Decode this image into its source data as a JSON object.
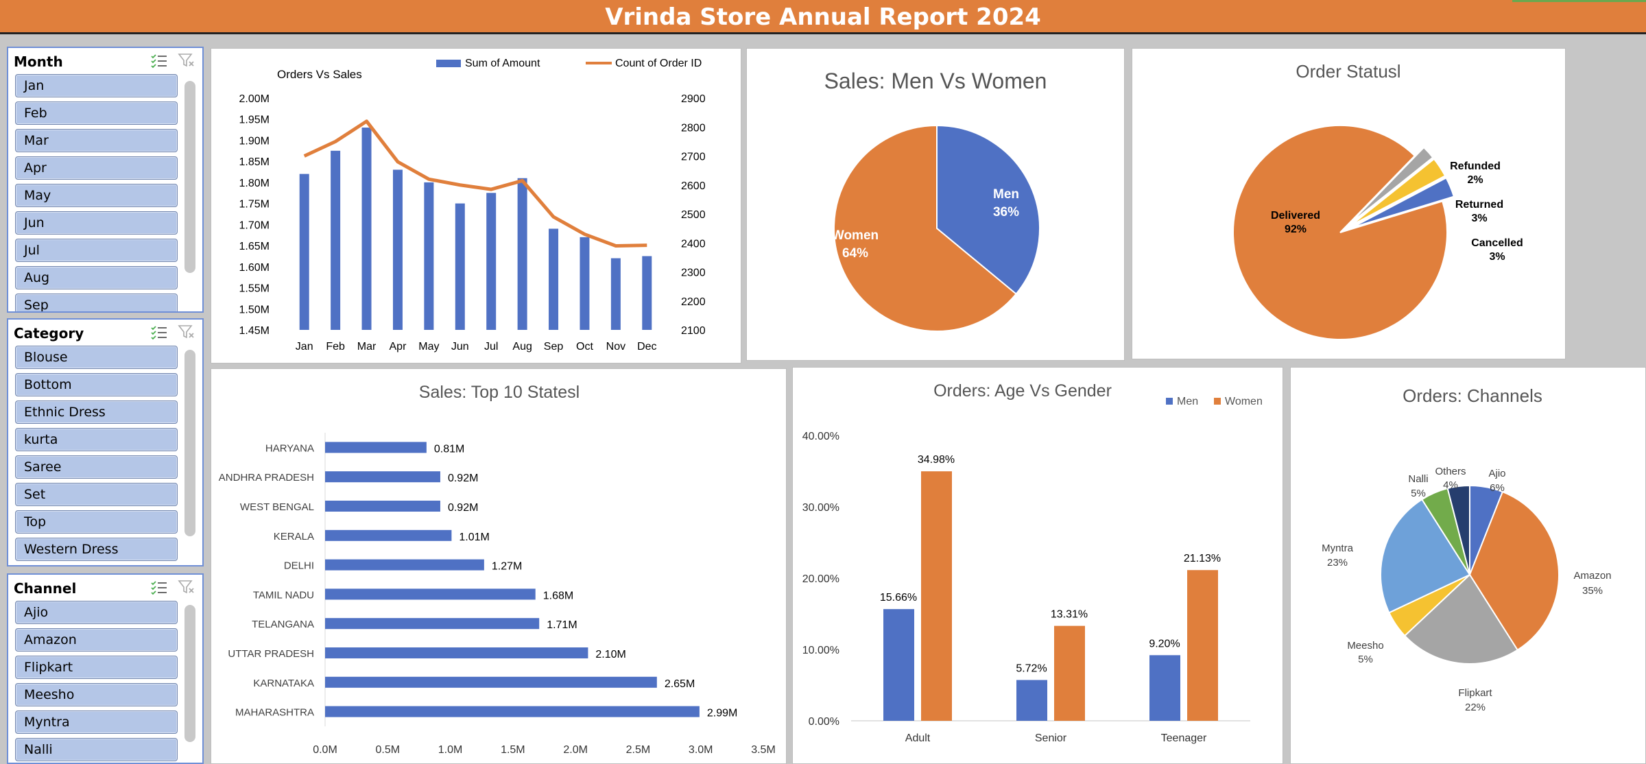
{
  "report_title": "Vrinda Store Annual Report 2024",
  "colors": {
    "orange": "#e07f3c",
    "blue": "#4f71c4",
    "gray": "#a5a5a5",
    "yellow": "#f5c231",
    "lightblue": "#6ea1d9",
    "green": "#72ab4b",
    "navy": "#263e6e"
  },
  "slicers": {
    "month": {
      "title": "Month",
      "items": [
        "Jan",
        "Feb",
        "Mar",
        "Apr",
        "May",
        "Jun",
        "Jul",
        "Aug",
        "Sep"
      ]
    },
    "category": {
      "title": "Category",
      "items": [
        "Blouse",
        "Bottom",
        "Ethnic Dress",
        "kurta",
        "Saree",
        "Set",
        "Top",
        "Western Dress"
      ]
    },
    "channel": {
      "title": "Channel",
      "items": [
        "Ajio",
        "Amazon",
        "Flipkart",
        "Meesho",
        "Myntra",
        "Nalli"
      ]
    }
  },
  "chart_data": [
    {
      "type": "bar",
      "title": "Orders Vs Sales",
      "categories": [
        "Jan",
        "Feb",
        "Mar",
        "Apr",
        "May",
        "Jun",
        "Jul",
        "Aug",
        "Sep",
        "Oct",
        "Nov",
        "Dec"
      ],
      "series": [
        {
          "name": "Sum of Amount",
          "kind": "bar",
          "axis": "left",
          "values": [
            1.82,
            1.875,
            1.93,
            1.83,
            1.8,
            1.75,
            1.775,
            1.81,
            1.69,
            1.67,
            1.62,
            1.625
          ]
        },
        {
          "name": "Count of Order ID",
          "kind": "line",
          "axis": "right",
          "values": [
            2700,
            2750,
            2820,
            2680,
            2620,
            2600,
            2585,
            2615,
            2490,
            2430,
            2390,
            2392
          ]
        }
      ],
      "y_left": {
        "min": 1.45,
        "max": 2.0,
        "step": 0.05,
        "suffix": "M",
        "ticks": [
          "1.45M",
          "1.50M",
          "1.55M",
          "1.60M",
          "1.65M",
          "1.70M",
          "1.75M",
          "1.80M",
          "1.85M",
          "1.90M",
          "1.95M",
          "2.00M"
        ]
      },
      "y_right": {
        "min": 2100,
        "max": 2900,
        "step": 100,
        "ticks": [
          "2100",
          "2200",
          "2300",
          "2400",
          "2500",
          "2600",
          "2700",
          "2800",
          "2900"
        ]
      },
      "legend": "top"
    },
    {
      "type": "pie",
      "title": "Sales: Men Vs Women",
      "slices": [
        {
          "label": "Men",
          "value": 36,
          "text": "36%"
        },
        {
          "label": "Women",
          "value": 64,
          "text": "64%"
        }
      ]
    },
    {
      "type": "pie",
      "title": "Order Statusl",
      "slices": [
        {
          "label": "Delivered",
          "value": 92,
          "text": "92%"
        },
        {
          "label": "Refunded",
          "value": 2,
          "text": "2%"
        },
        {
          "label": "Returned",
          "value": 3,
          "text": "3%"
        },
        {
          "label": "Cancelled",
          "value": 3,
          "text": "3%"
        }
      ]
    },
    {
      "type": "bar",
      "orientation": "horizontal",
      "title": "Sales: Top 10 Statesl",
      "categories": [
        "HARYANA",
        "ANDHRA PRADESH",
        "WEST BENGAL",
        "KERALA",
        "DELHI",
        "TAMIL NADU",
        "TELANGANA",
        "UTTAR PRADESH",
        "KARNATAKA",
        "MAHARASHTRA"
      ],
      "values": [
        0.81,
        0.92,
        0.92,
        1.01,
        1.27,
        1.68,
        1.71,
        2.1,
        2.65,
        2.99
      ],
      "labels": [
        "0.81M",
        "0.92M",
        "0.92M",
        "1.01M",
        "1.27M",
        "1.68M",
        "1.71M",
        "2.10M",
        "2.65M",
        "2.99M"
      ],
      "xlim": [
        0,
        3.5
      ],
      "xticks": [
        "0.0M",
        "0.5M",
        "1.0M",
        "1.5M",
        "2.0M",
        "2.5M",
        "3.0M",
        "3.5M"
      ]
    },
    {
      "type": "bar",
      "title": "Orders: Age  Vs Gender",
      "categories": [
        "Adult",
        "Senior",
        "Teenager"
      ],
      "series": [
        {
          "name": "Men",
          "values": [
            15.66,
            5.72,
            9.2
          ],
          "labels": [
            "15.66%",
            "5.72%",
            "9.20%"
          ]
        },
        {
          "name": "Women",
          "values": [
            34.98,
            13.31,
            21.13
          ],
          "labels": [
            "34.98%",
            "13.31%",
            "21.13%"
          ]
        }
      ],
      "ylim": [
        0,
        40
      ],
      "yticks": [
        "0.00%",
        "10.00%",
        "20.00%",
        "30.00%",
        "40.00%"
      ],
      "legend": "top-right"
    },
    {
      "type": "pie",
      "title": "Orders: Channels",
      "slices": [
        {
          "label": "Ajio",
          "value": 6,
          "text": "6%"
        },
        {
          "label": "Amazon",
          "value": 35,
          "text": "35%"
        },
        {
          "label": "Flipkart",
          "value": 22,
          "text": "22%"
        },
        {
          "label": "Meesho",
          "value": 5,
          "text": "5%"
        },
        {
          "label": "Myntra",
          "value": 23,
          "text": "23%"
        },
        {
          "label": "Nalli",
          "value": 5,
          "text": "5%"
        },
        {
          "label": "Others",
          "value": 4,
          "text": "4%"
        }
      ]
    }
  ]
}
